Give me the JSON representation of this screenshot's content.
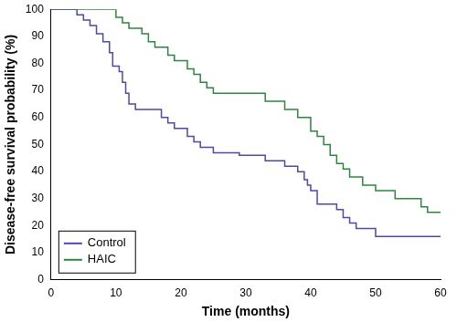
{
  "chart_data": {
    "type": "line",
    "x_label": "Time (months)",
    "y_label": "Disease-free survival probability (%)",
    "xlim": [
      0,
      60
    ],
    "xticks": [
      0,
      10,
      20,
      30,
      40,
      50,
      60
    ],
    "ylim": [
      0,
      100
    ],
    "yticks": [
      0,
      10,
      20,
      30,
      40,
      50,
      60,
      70,
      80,
      90,
      100
    ],
    "grid": false,
    "legend": "lower left",
    "series": [
      {
        "name": "Control",
        "color": "#4a4aa8",
        "line_style": "step",
        "x": [
          0,
          4,
          5,
          6,
          7,
          8,
          9,
          9.5,
          10.5,
          11,
          11.5,
          12,
          13,
          17,
          18,
          19,
          21,
          22,
          23,
          25,
          29,
          33,
          36,
          38,
          39,
          39.5,
          40,
          41,
          44,
          45,
          46,
          47,
          50,
          60
        ],
        "values": [
          100,
          98,
          96,
          94,
          91,
          88,
          84,
          79,
          77,
          73,
          69,
          65,
          63,
          60,
          58,
          56,
          53,
          51,
          49,
          47,
          46,
          44,
          42,
          40,
          37,
          35,
          33,
          28,
          26,
          23,
          21,
          19,
          16,
          16
        ]
      },
      {
        "name": "HAIC",
        "color": "#2e8540",
        "line_style": "step",
        "x": [
          0,
          9,
          10,
          11,
          12,
          14,
          15,
          16,
          18,
          19,
          21,
          22,
          23,
          24,
          25,
          33,
          36,
          38,
          40,
          41,
          42,
          43,
          44,
          45,
          46,
          48,
          50,
          53,
          57,
          58,
          60
        ],
        "values": [
          100,
          100,
          97,
          95,
          93,
          91,
          88,
          86,
          83,
          81,
          78,
          76,
          73,
          71,
          69,
          66,
          63,
          60,
          55,
          53,
          50,
          46,
          43,
          41,
          38,
          35,
          33,
          30,
          27,
          25,
          25
        ]
      }
    ]
  }
}
